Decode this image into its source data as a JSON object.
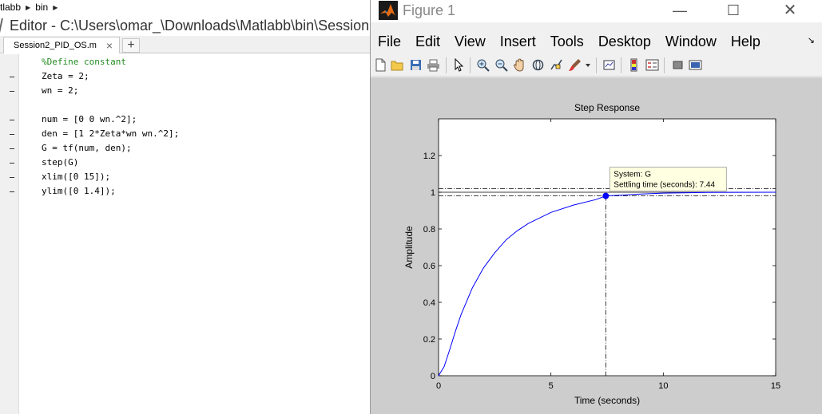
{
  "breadcrumb": {
    "items": [
      "tlabb",
      "bin"
    ]
  },
  "editor": {
    "title": "Editor - C:\\Users\\omar_\\Downloads\\Matlabb\\bin\\Session",
    "tab_label": "Session2_PID_OS.m",
    "tab_close": "×",
    "add_tab": "+",
    "lines": [
      {
        "text": "%Define constant",
        "comment": true,
        "dash": false
      },
      {
        "text": "Zeta = 2;",
        "comment": false,
        "dash": true
      },
      {
        "text": "wn = 2;",
        "comment": false,
        "dash": true
      },
      {
        "text": "",
        "comment": false,
        "dash": false
      },
      {
        "text": "num = [0 0 wn.^2];",
        "comment": false,
        "dash": true
      },
      {
        "text": "den = [1 2*Zeta*wn wn.^2];",
        "comment": false,
        "dash": true
      },
      {
        "text": "G = tf(num, den);",
        "comment": false,
        "dash": true
      },
      {
        "text": "step(G)",
        "comment": false,
        "dash": true
      },
      {
        "text": "xlim([0 15]);",
        "comment": false,
        "dash": true
      },
      {
        "text": "ylim([0 1.4]);",
        "comment": false,
        "dash": true
      }
    ]
  },
  "figure": {
    "title": "Figure 1",
    "minimize": "—",
    "maximize": "☐",
    "close": "✕",
    "menu": [
      "File",
      "Edit",
      "View",
      "Insert",
      "Tools",
      "Desktop",
      "Window",
      "Help"
    ],
    "menu_arrow": "↘",
    "toolbar": [
      "new-figure-icon",
      "open-file-icon",
      "save-icon",
      "print-icon",
      "pointer-icon",
      "zoom-in-icon",
      "zoom-out-icon",
      "pan-hand-icon",
      "rotate-3d-icon",
      "data-cursor-icon",
      "brush-icon",
      "brush-dropdown-icon",
      "link-plot-icon",
      "colorbar-icon",
      "legend-icon",
      "hide-plot-tools-icon",
      "show-plot-tools-icon"
    ]
  },
  "chart_data": {
    "type": "line",
    "title": "Step Response",
    "xlabel": "Time (seconds)",
    "ylabel": "Amplitude",
    "xlim": [
      0,
      15
    ],
    "ylim": [
      0,
      1.4
    ],
    "xticks": [
      0,
      5,
      10,
      15
    ],
    "xtick_labels": [
      "0",
      "5",
      "10",
      "15"
    ],
    "yticks": [
      0,
      0.2,
      0.4,
      0.6,
      0.8,
      1,
      1.2
    ],
    "ytick_labels": [
      "0",
      "0.2",
      "0.4",
      "0.6",
      "0.8",
      "1",
      "1.2"
    ],
    "grid": false,
    "system": {
      "zeta": 2,
      "wn": 2
    },
    "series": [
      {
        "x": [
          0,
          0.25,
          0.5,
          0.75,
          1,
          1.5,
          2,
          2.5,
          3,
          3.5,
          4,
          5,
          6,
          7,
          7.44,
          8,
          9,
          10,
          12,
          15
        ],
        "y": [
          0,
          0.05,
          0.144,
          0.242,
          0.332,
          0.478,
          0.588,
          0.67,
          0.74,
          0.79,
          0.83,
          0.89,
          0.93,
          0.96,
          0.98,
          0.983,
          0.99,
          0.995,
          0.999,
          1.0
        ],
        "color": "#0000ff"
      }
    ],
    "settling_bands": [
      0.98,
      1.02
    ],
    "final_value": 1,
    "marker": {
      "x": 7.44,
      "y": 0.98
    },
    "datatip": {
      "line1": "System: G",
      "line2": "Settling time (seconds): 7.44"
    }
  }
}
